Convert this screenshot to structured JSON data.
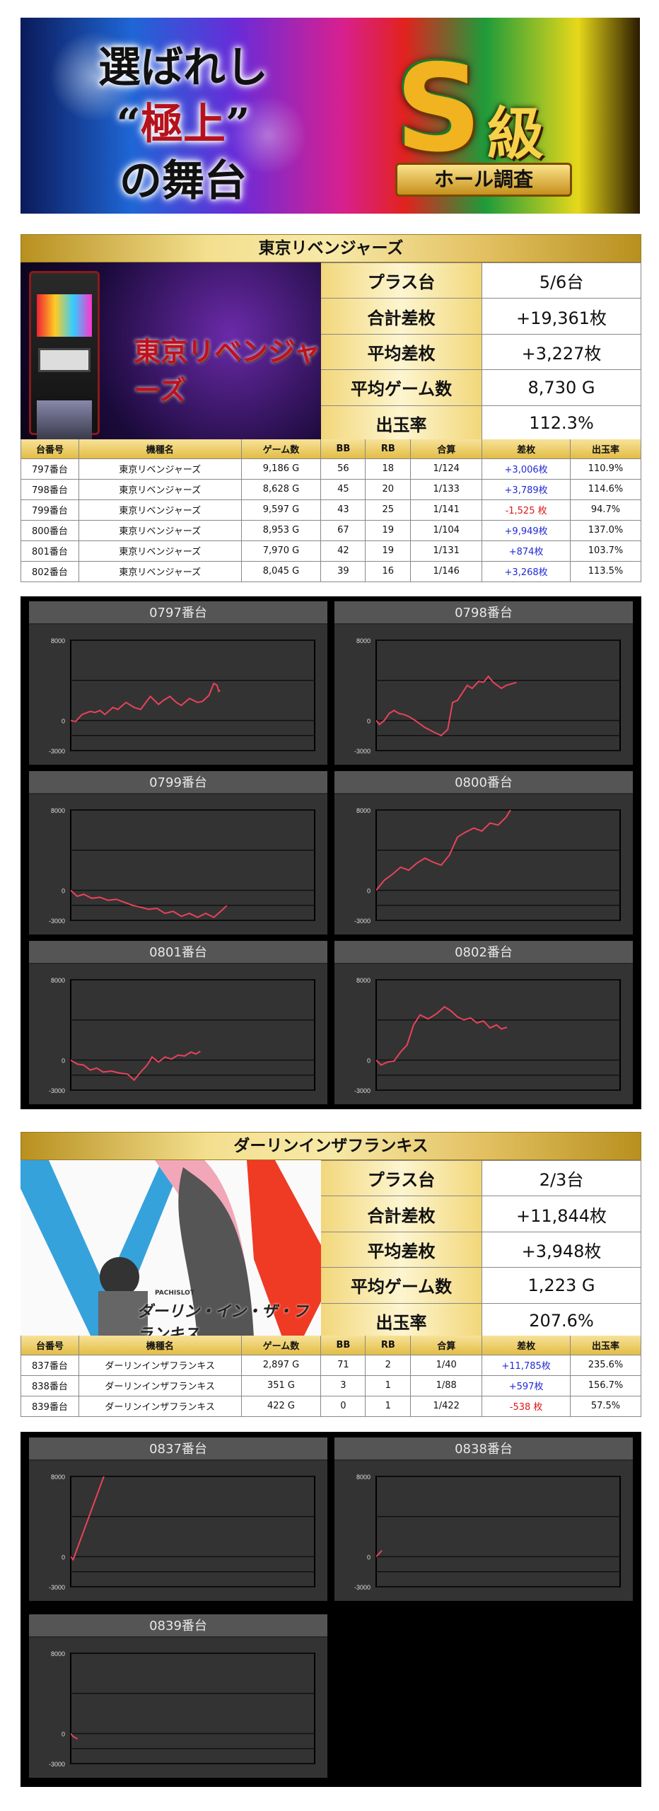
{
  "banner": {
    "line1": "選ばれし",
    "line2_open": "“",
    "line2": "極上",
    "line2_close": "”",
    "line3": "の舞台",
    "badge_letter": "S",
    "badge_kanji": "級",
    "badge_ribbon": "ホール調査"
  },
  "colors": {
    "plus": "#2229d6",
    "minus": "#e01515",
    "line": "#e8435a",
    "gold": "#e2bd45"
  },
  "sections": [
    {
      "title": "東京リベンジャーズ",
      "image_logo": "東京リベンジャーズ",
      "stats": [
        {
          "label": "プラス台",
          "value": "5/6台"
        },
        {
          "label": "合計差枚",
          "value": "+19,361枚"
        },
        {
          "label": "平均差枚",
          "value": "+3,227枚"
        },
        {
          "label": "平均ゲーム数",
          "value": "8,730 G"
        },
        {
          "label": "出玉率",
          "value": "112.3%"
        }
      ],
      "columns": [
        "台番号",
        "機種名",
        "ゲーム数",
        "BB",
        "RB",
        "合算",
        "差枚",
        "出玉率"
      ],
      "rows": [
        {
          "no": "797番台",
          "name": "東京リベンジャーズ",
          "games": "9,186 G",
          "bb": "56",
          "rb": "18",
          "total": "1/124",
          "diff": "+3,006枚",
          "sign": "plus",
          "rate": "110.9%"
        },
        {
          "no": "798番台",
          "name": "東京リベンジャーズ",
          "games": "8,628 G",
          "bb": "45",
          "rb": "20",
          "total": "1/133",
          "diff": "+3,789枚",
          "sign": "plus",
          "rate": "114.6%"
        },
        {
          "no": "799番台",
          "name": "東京リベンジャーズ",
          "games": "9,597 G",
          "bb": "43",
          "rb": "25",
          "total": "1/141",
          "diff": "-1,525 枚",
          "sign": "minus",
          "rate": "94.7%"
        },
        {
          "no": "800番台",
          "name": "東京リベンジャーズ",
          "games": "8,953 G",
          "bb": "67",
          "rb": "19",
          "total": "1/104",
          "diff": "+9,949枚",
          "sign": "plus",
          "rate": "137.0%"
        },
        {
          "no": "801番台",
          "name": "東京リベンジャーズ",
          "games": "7,970 G",
          "bb": "42",
          "rb": "19",
          "total": "1/131",
          "diff": "+874枚",
          "sign": "plus",
          "rate": "103.7%"
        },
        {
          "no": "802番台",
          "name": "東京リベンジャーズ",
          "games": "8,045 G",
          "bb": "39",
          "rb": "16",
          "total": "1/146",
          "diff": "+3,268枚",
          "sign": "plus",
          "rate": "113.5%"
        }
      ]
    },
    {
      "title": "ダーリンインザフランキス",
      "image_logo": "ダーリン・イン・ザ・フランキス",
      "image_caption": "PACHISLOT",
      "stats": [
        {
          "label": "プラス台",
          "value": "2/3台"
        },
        {
          "label": "合計差枚",
          "value": "+11,844枚"
        },
        {
          "label": "平均差枚",
          "value": "+3,948枚"
        },
        {
          "label": "平均ゲーム数",
          "value": "1,223 G"
        },
        {
          "label": "出玉率",
          "value": "207.6%"
        }
      ],
      "columns": [
        "台番号",
        "機種名",
        "ゲーム数",
        "BB",
        "RB",
        "合算",
        "差枚",
        "出玉率"
      ],
      "rows": [
        {
          "no": "837番台",
          "name": "ダーリンインザフランキス",
          "games": "2,897 G",
          "bb": "71",
          "rb": "2",
          "total": "1/40",
          "diff": "+11,785枚",
          "sign": "plus",
          "rate": "235.6%"
        },
        {
          "no": "838番台",
          "name": "ダーリンインザフランキス",
          "games": "351 G",
          "bb": "3",
          "rb": "1",
          "total": "1/88",
          "diff": "+597枚",
          "sign": "plus",
          "rate": "156.7%"
        },
        {
          "no": "839番台",
          "name": "ダーリンインザフランキス",
          "games": "422 G",
          "bb": "0",
          "rb": "1",
          "total": "1/422",
          "diff": "-538 枚",
          "sign": "minus",
          "rate": "57.5%"
        }
      ]
    }
  ],
  "chart_data": [
    {
      "type": "line",
      "title": "0797番台",
      "xlim": [
        0,
        15000
      ],
      "ylim": [
        -3000,
        8000
      ],
      "yticks": [
        8000,
        0,
        -3000
      ],
      "gridlines": [
        8000,
        4000,
        0,
        -1500,
        -3000
      ],
      "grid": true,
      "points": [
        [
          0,
          0
        ],
        [
          300,
          -100
        ],
        [
          700,
          600
        ],
        [
          1200,
          900
        ],
        [
          1500,
          800
        ],
        [
          1800,
          1000
        ],
        [
          2100,
          600
        ],
        [
          2600,
          1300
        ],
        [
          2900,
          1100
        ],
        [
          3400,
          1800
        ],
        [
          3900,
          1300
        ],
        [
          4300,
          1100
        ],
        [
          4900,
          2400
        ],
        [
          5400,
          1600
        ],
        [
          5700,
          2000
        ],
        [
          6100,
          2400
        ],
        [
          6500,
          1800
        ],
        [
          6800,
          1500
        ],
        [
          7300,
          2200
        ],
        [
          7800,
          1800
        ],
        [
          8100,
          1900
        ],
        [
          8500,
          2500
        ],
        [
          8800,
          3700
        ],
        [
          9000,
          3500
        ],
        [
          9100,
          2900
        ],
        [
          9186,
          3006
        ]
      ]
    },
    {
      "type": "line",
      "title": "0798番台",
      "xlim": [
        0,
        15000
      ],
      "ylim": [
        -3000,
        8000
      ],
      "yticks": [
        8000,
        0,
        -3000
      ],
      "gridlines": [
        8000,
        4000,
        0,
        -1500,
        -3000
      ],
      "grid": true,
      "points": [
        [
          0,
          0
        ],
        [
          200,
          -400
        ],
        [
          500,
          0
        ],
        [
          800,
          700
        ],
        [
          1100,
          1000
        ],
        [
          1400,
          700
        ],
        [
          1700,
          600
        ],
        [
          2000,
          400
        ],
        [
          2400,
          0
        ],
        [
          3000,
          -700
        ],
        [
          3600,
          -1200
        ],
        [
          4000,
          -1500
        ],
        [
          4400,
          -900
        ],
        [
          4700,
          1800
        ],
        [
          5000,
          2000
        ],
        [
          5600,
          3500
        ],
        [
          5900,
          3200
        ],
        [
          6300,
          3900
        ],
        [
          6600,
          3800
        ],
        [
          6900,
          4400
        ],
        [
          7200,
          3800
        ],
        [
          7700,
          3200
        ],
        [
          8000,
          3500
        ],
        [
          8628,
          3789
        ]
      ]
    },
    {
      "type": "line",
      "title": "0799番台",
      "xlim": [
        0,
        15000
      ],
      "ylim": [
        -3000,
        8000
      ],
      "yticks": [
        8000,
        0,
        -3000
      ],
      "gridlines": [
        8000,
        4000,
        0,
        -1500,
        -3000
      ],
      "grid": true,
      "points": [
        [
          0,
          0
        ],
        [
          400,
          -600
        ],
        [
          800,
          -400
        ],
        [
          1300,
          -800
        ],
        [
          1800,
          -700
        ],
        [
          2300,
          -1000
        ],
        [
          2800,
          -900
        ],
        [
          3300,
          -1200
        ],
        [
          3800,
          -1500
        ],
        [
          4300,
          -1700
        ],
        [
          4800,
          -1900
        ],
        [
          5300,
          -1800
        ],
        [
          5800,
          -2300
        ],
        [
          6300,
          -2100
        ],
        [
          6800,
          -2600
        ],
        [
          7300,
          -2300
        ],
        [
          7800,
          -2700
        ],
        [
          8300,
          -2300
        ],
        [
          8800,
          -2700
        ],
        [
          9300,
          -2000
        ],
        [
          9597,
          -1525
        ]
      ]
    },
    {
      "type": "line",
      "title": "0800番台",
      "xlim": [
        0,
        15000
      ],
      "ylim": [
        -3000,
        8000
      ],
      "yticks": [
        8000,
        0,
        -3000
      ],
      "gridlines": [
        8000,
        4000,
        0,
        -1500,
        -3000
      ],
      "grid": true,
      "points": [
        [
          0,
          0
        ],
        [
          500,
          1000
        ],
        [
          1000,
          1600
        ],
        [
          1500,
          2300
        ],
        [
          2000,
          2000
        ],
        [
          2500,
          2700
        ],
        [
          3000,
          3200
        ],
        [
          3500,
          2800
        ],
        [
          4000,
          2500
        ],
        [
          4500,
          3500
        ],
        [
          5000,
          5300
        ],
        [
          5500,
          5800
        ],
        [
          6000,
          6200
        ],
        [
          6500,
          5900
        ],
        [
          7000,
          6700
        ],
        [
          7500,
          6500
        ],
        [
          8000,
          7300
        ],
        [
          8953,
          9949
        ]
      ]
    },
    {
      "type": "line",
      "title": "0801番台",
      "xlim": [
        0,
        15000
      ],
      "ylim": [
        -3000,
        8000
      ],
      "yticks": [
        8000,
        0,
        -3000
      ],
      "gridlines": [
        8000,
        4000,
        0,
        -1500,
        -3000
      ],
      "grid": true,
      "points": [
        [
          0,
          0
        ],
        [
          400,
          -400
        ],
        [
          800,
          -500
        ],
        [
          1200,
          -1000
        ],
        [
          1600,
          -800
        ],
        [
          2000,
          -1200
        ],
        [
          2500,
          -1100
        ],
        [
          3000,
          -1300
        ],
        [
          3500,
          -1400
        ],
        [
          3900,
          -2000
        ],
        [
          4300,
          -1200
        ],
        [
          4700,
          -500
        ],
        [
          5000,
          300
        ],
        [
          5400,
          -200
        ],
        [
          5800,
          300
        ],
        [
          6200,
          100
        ],
        [
          6600,
          500
        ],
        [
          7000,
          400
        ],
        [
          7400,
          800
        ],
        [
          7700,
          600
        ],
        [
          7970,
          874
        ]
      ]
    },
    {
      "type": "line",
      "title": "0802番台",
      "xlim": [
        0,
        15000
      ],
      "ylim": [
        -3000,
        8000
      ],
      "yticks": [
        8000,
        0,
        -3000
      ],
      "gridlines": [
        8000,
        4000,
        0,
        -1500,
        -3000
      ],
      "grid": true,
      "points": [
        [
          0,
          0
        ],
        [
          300,
          -500
        ],
        [
          700,
          -200
        ],
        [
          1100,
          -100
        ],
        [
          1500,
          800
        ],
        [
          1900,
          1500
        ],
        [
          2300,
          3500
        ],
        [
          2700,
          4500
        ],
        [
          3200,
          4100
        ],
        [
          3700,
          4600
        ],
        [
          4200,
          5300
        ],
        [
          4600,
          4900
        ],
        [
          5000,
          4300
        ],
        [
          5400,
          4000
        ],
        [
          5800,
          4200
        ],
        [
          6200,
          3700
        ],
        [
          6600,
          3900
        ],
        [
          7000,
          3200
        ],
        [
          7400,
          3500
        ],
        [
          7700,
          3100
        ],
        [
          8045,
          3268
        ]
      ]
    },
    {
      "type": "line",
      "title": "0837番台",
      "xlim": [
        0,
        15000
      ],
      "ylim": [
        -3000,
        8000
      ],
      "yticks": [
        8000,
        0,
        -3000
      ],
      "gridlines": [
        8000,
        4000,
        0,
        -1500,
        -3000
      ],
      "grid": true,
      "points": [
        [
          0,
          0
        ],
        [
          150,
          -300
        ],
        [
          2897,
          11785
        ]
      ]
    },
    {
      "type": "line",
      "title": "0838番台",
      "xlim": [
        0,
        15000
      ],
      "ylim": [
        -3000,
        8000
      ],
      "yticks": [
        8000,
        0,
        -3000
      ],
      "gridlines": [
        8000,
        4000,
        0,
        -1500,
        -3000
      ],
      "grid": true,
      "points": [
        [
          0,
          0
        ],
        [
          351,
          597
        ]
      ]
    },
    {
      "type": "line",
      "title": "0839番台",
      "xlim": [
        0,
        15000
      ],
      "ylim": [
        -3000,
        8000
      ],
      "yticks": [
        8000,
        0,
        -3000
      ],
      "gridlines": [
        8000,
        4000,
        0,
        -1500,
        -3000
      ],
      "grid": true,
      "points": [
        [
          0,
          0
        ],
        [
          150,
          -300
        ],
        [
          422,
          -538
        ]
      ]
    }
  ]
}
